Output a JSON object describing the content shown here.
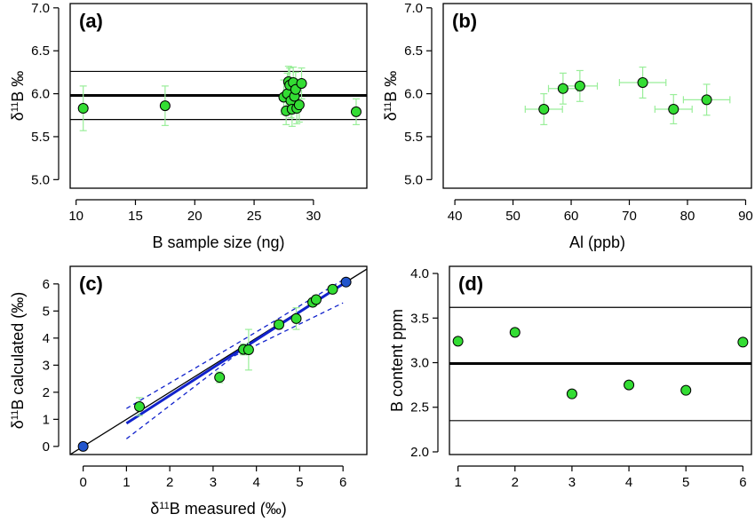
{
  "chart_data": [
    {
      "id": "a",
      "type": "scatter",
      "panel_label": "(a)",
      "xlabel": "B sample size (ng)",
      "ylabel_parts": [
        "δ",
        "11",
        "B ‰"
      ],
      "xlim": [
        9.5,
        34.5
      ],
      "ylim": [
        4.9,
        7.05
      ],
      "xticks": [
        10,
        15,
        20,
        25,
        30
      ],
      "yticks": [
        "5.0",
        "5.5",
        "6.0",
        "6.5",
        "7.0"
      ],
      "grid": false,
      "marker_color": "#33dd33",
      "errorbar_color": "#99ee99",
      "points": [
        {
          "x": 10.6,
          "y": 5.83,
          "yerr": 0.26
        },
        {
          "x": 17.5,
          "y": 5.86,
          "yerr": 0.23
        },
        {
          "x": 27.5,
          "y": 5.96,
          "yerr": 0.2
        },
        {
          "x": 27.7,
          "y": 5.8,
          "yerr": 0.16
        },
        {
          "x": 27.8,
          "y": 6.0,
          "yerr": 0.24
        },
        {
          "x": 27.9,
          "y": 6.14,
          "yerr": 0.18
        },
        {
          "x": 28.0,
          "y": 6.1,
          "yerr": 0.2
        },
        {
          "x": 28.1,
          "y": 5.92,
          "yerr": 0.2
        },
        {
          "x": 28.2,
          "y": 5.82,
          "yerr": 0.2
        },
        {
          "x": 28.3,
          "y": 6.13,
          "yerr": 0.18
        },
        {
          "x": 28.4,
          "y": 5.97,
          "yerr": 0.2
        },
        {
          "x": 28.5,
          "y": 6.05,
          "yerr": 0.2
        },
        {
          "x": 28.6,
          "y": 5.83,
          "yerr": 0.18
        },
        {
          "x": 28.8,
          "y": 5.87,
          "yerr": 0.2
        },
        {
          "x": 29.0,
          "y": 6.12,
          "yerr": 0.18
        },
        {
          "x": 33.6,
          "y": 5.79,
          "yerr": 0.15
        }
      ],
      "hlines": [
        {
          "y": 5.98,
          "weight": "thick"
        },
        {
          "y": 6.26,
          "weight": "thin"
        },
        {
          "y": 5.7,
          "weight": "thin"
        }
      ]
    },
    {
      "id": "b",
      "type": "scatter",
      "panel_label": "(b)",
      "xlabel": "Al (ppb)",
      "ylabel_parts": [
        "δ",
        "11",
        "B ‰"
      ],
      "xlim": [
        38,
        91
      ],
      "ylim": [
        4.9,
        7.05
      ],
      "xticks": [
        40,
        50,
        60,
        70,
        80,
        90
      ],
      "yticks": [
        "5.0",
        "5.5",
        "6.0",
        "6.5",
        "7.0"
      ],
      "grid": false,
      "marker_color": "#33dd33",
      "errorbar_color": "#99ee99",
      "points": [
        {
          "x": 55.3,
          "y": 5.82,
          "xerr": 3.2,
          "yerr": 0.18
        },
        {
          "x": 58.6,
          "y": 6.06,
          "xerr": 2.5,
          "yerr": 0.18
        },
        {
          "x": 61.5,
          "y": 6.09,
          "xerr": 3.0,
          "yerr": 0.18
        },
        {
          "x": 72.3,
          "y": 6.13,
          "xerr": 4.0,
          "yerr": 0.18
        },
        {
          "x": 77.6,
          "y": 5.82,
          "xerr": 3.2,
          "yerr": 0.17
        },
        {
          "x": 83.3,
          "y": 5.93,
          "xerr": 4.0,
          "yerr": 0.18
        }
      ]
    },
    {
      "id": "c",
      "type": "scatter",
      "panel_label": "(c)",
      "xlabel_parts": [
        "δ",
        "11",
        "B measured (‰)"
      ],
      "ylabel_parts": [
        "δ",
        "11",
        "B calculated (‰)"
      ],
      "xlim": [
        -0.3,
        6.55
      ],
      "ylim": [
        -0.3,
        6.65
      ],
      "xticks": [
        0,
        1,
        2,
        3,
        4,
        5,
        6
      ],
      "yticks": [
        0,
        1,
        2,
        3,
        4,
        5,
        6
      ],
      "grid": false,
      "marker_color": "#33dd33",
      "errorbar_color": "#99ee99",
      "endpoint_color": "#2255cc",
      "fit_color": "#1122cc",
      "points": [
        {
          "x": 0.0,
          "y": 0.0,
          "yerr": 0.0,
          "endpoint": true
        },
        {
          "x": 1.3,
          "y": 1.47,
          "yerr": 0.33
        },
        {
          "x": 3.15,
          "y": 2.55,
          "yerr": 0.2
        },
        {
          "x": 3.7,
          "y": 3.58,
          "yerr": 0.2
        },
        {
          "x": 3.82,
          "y": 3.57,
          "yerr": 0.75
        },
        {
          "x": 4.52,
          "y": 4.5,
          "yerr": 0.15
        },
        {
          "x": 4.92,
          "y": 4.72,
          "yerr": 0.4
        },
        {
          "x": 5.3,
          "y": 5.32,
          "yerr": 0.15
        },
        {
          "x": 5.38,
          "y": 5.42,
          "yerr": 0.15
        },
        {
          "x": 5.76,
          "y": 5.8,
          "yerr": 0.15
        },
        {
          "x": 6.07,
          "y": 6.07,
          "yerr": 0.0,
          "endpoint": true
        }
      ],
      "one_to_one_line": true,
      "fit_line": {
        "x0": 1.0,
        "y0": 0.85,
        "x1": 6.07,
        "y1": 6.07
      },
      "confidence_band": {
        "upper": [
          [
            1.0,
            1.4
          ],
          [
            3.5,
            3.75
          ],
          [
            6.0,
            6.15
          ]
        ],
        "lower": [
          [
            1.0,
            0.28
          ],
          [
            3.5,
            3.35
          ],
          [
            6.0,
            5.3
          ]
        ]
      }
    },
    {
      "id": "d",
      "type": "scatter",
      "panel_label": "(d)",
      "xlabel": "",
      "ylabel": "B content ppm",
      "xlim": [
        0.85,
        6.15
      ],
      "ylim": [
        1.97,
        4.08
      ],
      "xticks": [
        1,
        2,
        3,
        4,
        5,
        6
      ],
      "yticks": [
        "2.0",
        "2.5",
        "3.0",
        "3.5",
        "4.0"
      ],
      "grid": false,
      "marker_color": "#33dd33",
      "points": [
        {
          "x": 1,
          "y": 3.24
        },
        {
          "x": 2,
          "y": 3.34
        },
        {
          "x": 3,
          "y": 2.65
        },
        {
          "x": 4,
          "y": 2.75
        },
        {
          "x": 5,
          "y": 2.69
        },
        {
          "x": 6,
          "y": 3.23
        }
      ],
      "hlines": [
        {
          "y": 2.99,
          "weight": "thick"
        },
        {
          "y": 3.62,
          "weight": "thin"
        },
        {
          "y": 2.35,
          "weight": "thin"
        }
      ]
    }
  ]
}
